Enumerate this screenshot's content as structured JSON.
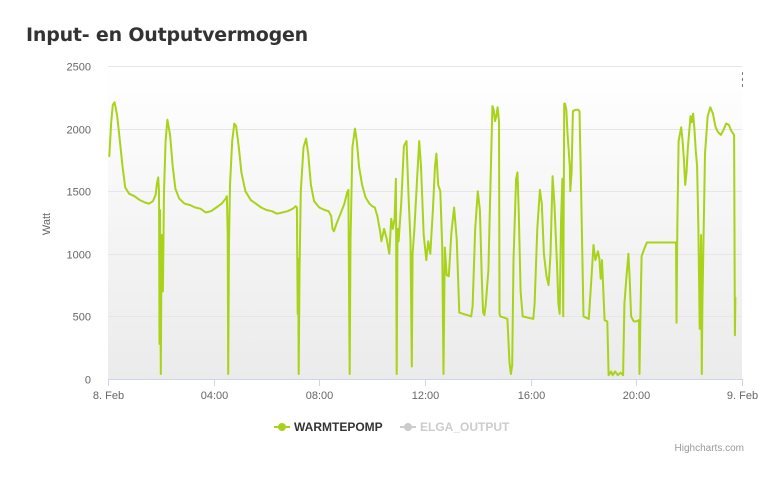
{
  "title": "Input- en Outputvermogen",
  "menu_icon": "hamburger-menu-icon",
  "credits": "Highcharts.com",
  "colors": {
    "warmtepomp": "#a8d31a",
    "elga_inactive": "#cccccc",
    "plot_bg_top": "#ffffff",
    "plot_bg_bottom": "#ebebeb"
  },
  "chart_data": {
    "type": "line",
    "title": "Input- en Outputvermogen",
    "ylabel": "Watt",
    "xlabel": "",
    "ylim": [
      0,
      2500
    ],
    "xlim_hours": [
      0,
      24
    ],
    "y_ticks": [
      "0",
      "500",
      "1000",
      "1500",
      "2000",
      "2500"
    ],
    "x_ticks": [
      {
        "h": 0,
        "label": "8. Feb"
      },
      {
        "h": 4,
        "label": "04:00"
      },
      {
        "h": 8,
        "label": "08:00"
      },
      {
        "h": 12,
        "label": "12:00"
      },
      {
        "h": 16,
        "label": "16:00"
      },
      {
        "h": 20,
        "label": "20:00"
      },
      {
        "h": 24,
        "label": "9. Feb"
      }
    ],
    "grid": true,
    "legend_position": "bottom-center",
    "series": [
      {
        "name": "WARMTEPOMP",
        "visible": true,
        "color": "#a8d31a",
        "points": [
          [
            0.05,
            1780
          ],
          [
            0.12,
            2050
          ],
          [
            0.18,
            2190
          ],
          [
            0.25,
            2210
          ],
          [
            0.35,
            2100
          ],
          [
            0.45,
            1900
          ],
          [
            0.55,
            1700
          ],
          [
            0.65,
            1530
          ],
          [
            0.8,
            1480
          ],
          [
            1.0,
            1460
          ],
          [
            1.2,
            1430
          ],
          [
            1.4,
            1410
          ],
          [
            1.55,
            1400
          ],
          [
            1.7,
            1420
          ],
          [
            1.8,
            1470
          ],
          [
            1.85,
            1560
          ],
          [
            1.9,
            1610
          ],
          [
            1.93,
            1500
          ],
          [
            1.95,
            280
          ],
          [
            1.97,
            1350
          ],
          [
            2.0,
            40
          ],
          [
            2.03,
            1150
          ],
          [
            2.08,
            700
          ],
          [
            2.12,
            1500
          ],
          [
            2.18,
            1900
          ],
          [
            2.25,
            2070
          ],
          [
            2.35,
            1950
          ],
          [
            2.45,
            1700
          ],
          [
            2.55,
            1520
          ],
          [
            2.7,
            1440
          ],
          [
            2.9,
            1400
          ],
          [
            3.1,
            1390
          ],
          [
            3.3,
            1370
          ],
          [
            3.5,
            1360
          ],
          [
            3.7,
            1330
          ],
          [
            3.9,
            1340
          ],
          [
            4.1,
            1370
          ],
          [
            4.3,
            1400
          ],
          [
            4.45,
            1440
          ],
          [
            4.5,
            1460
          ],
          [
            4.53,
            1150
          ],
          [
            4.55,
            40
          ],
          [
            4.58,
            1100
          ],
          [
            4.62,
            1550
          ],
          [
            4.7,
            1900
          ],
          [
            4.78,
            2040
          ],
          [
            4.85,
            2020
          ],
          [
            4.95,
            1850
          ],
          [
            5.05,
            1650
          ],
          [
            5.2,
            1500
          ],
          [
            5.4,
            1430
          ],
          [
            5.6,
            1400
          ],
          [
            5.8,
            1370
          ],
          [
            6.0,
            1350
          ],
          [
            6.2,
            1340
          ],
          [
            6.4,
            1320
          ],
          [
            6.6,
            1330
          ],
          [
            6.8,
            1340
          ],
          [
            7.0,
            1360
          ],
          [
            7.1,
            1380
          ],
          [
            7.15,
            1370
          ],
          [
            7.18,
            520
          ],
          [
            7.2,
            960
          ],
          [
            7.22,
            40
          ],
          [
            7.25,
            850
          ],
          [
            7.3,
            1500
          ],
          [
            7.4,
            1850
          ],
          [
            7.5,
            1920
          ],
          [
            7.58,
            1800
          ],
          [
            7.68,
            1550
          ],
          [
            7.8,
            1420
          ],
          [
            8.0,
            1370
          ],
          [
            8.2,
            1350
          ],
          [
            8.35,
            1340
          ],
          [
            8.45,
            1300
          ],
          [
            8.5,
            1200
          ],
          [
            8.55,
            1180
          ],
          [
            8.65,
            1240
          ],
          [
            8.8,
            1320
          ],
          [
            8.95,
            1400
          ],
          [
            9.05,
            1490
          ],
          [
            9.1,
            1510
          ],
          [
            9.13,
            520
          ],
          [
            9.15,
            40
          ],
          [
            9.18,
            1100
          ],
          [
            9.25,
            1850
          ],
          [
            9.35,
            2000
          ],
          [
            9.42,
            1900
          ],
          [
            9.5,
            1700
          ],
          [
            9.62,
            1550
          ],
          [
            9.75,
            1450
          ],
          [
            9.9,
            1400
          ],
          [
            10.0,
            1380
          ],
          [
            10.1,
            1370
          ],
          [
            10.2,
            1300
          ],
          [
            10.3,
            1180
          ],
          [
            10.35,
            1100
          ],
          [
            10.45,
            1200
          ],
          [
            10.55,
            1120
          ],
          [
            10.65,
            1000
          ],
          [
            10.72,
            1280
          ],
          [
            10.78,
            1200
          ],
          [
            10.85,
            1280
          ],
          [
            10.9,
            1600
          ],
          [
            10.93,
            40
          ],
          [
            10.96,
            1200
          ],
          [
            11.0,
            1100
          ],
          [
            11.1,
            1400
          ],
          [
            11.2,
            1860
          ],
          [
            11.3,
            1900
          ],
          [
            11.38,
            1450
          ],
          [
            11.45,
            1100
          ],
          [
            11.5,
            100
          ],
          [
            11.53,
            1000
          ],
          [
            11.6,
            1200
          ],
          [
            11.7,
            1600
          ],
          [
            11.78,
            1900
          ],
          [
            11.85,
            1700
          ],
          [
            11.95,
            1150
          ],
          [
            12.05,
            950
          ],
          [
            12.12,
            1100
          ],
          [
            12.2,
            1000
          ],
          [
            12.3,
            1350
          ],
          [
            12.38,
            1700
          ],
          [
            12.43,
            1800
          ],
          [
            12.5,
            1550
          ],
          [
            12.58,
            1500
          ],
          [
            12.65,
            1060
          ],
          [
            12.7,
            40
          ],
          [
            12.75,
            1050
          ],
          [
            12.82,
            830
          ],
          [
            12.9,
            820
          ],
          [
            13.0,
            1170
          ],
          [
            13.1,
            1370
          ],
          [
            13.2,
            1120
          ],
          [
            13.3,
            530
          ],
          [
            13.45,
            520
          ],
          [
            13.6,
            510
          ],
          [
            13.75,
            500
          ],
          [
            13.8,
            580
          ],
          [
            13.9,
            1200
          ],
          [
            14.0,
            1500
          ],
          [
            14.08,
            1350
          ],
          [
            14.15,
            800
          ],
          [
            14.2,
            530
          ],
          [
            14.25,
            510
          ],
          [
            14.3,
            600
          ],
          [
            14.4,
            870
          ],
          [
            14.48,
            1560
          ],
          [
            14.55,
            2180
          ],
          [
            14.6,
            2150
          ],
          [
            14.65,
            2060
          ],
          [
            14.7,
            2100
          ],
          [
            14.75,
            2170
          ],
          [
            14.8,
            2060
          ],
          [
            14.82,
            520
          ],
          [
            14.85,
            500
          ],
          [
            15.0,
            490
          ],
          [
            15.12,
            480
          ],
          [
            15.2,
            130
          ],
          [
            15.25,
            40
          ],
          [
            15.3,
            110
          ],
          [
            15.35,
            950
          ],
          [
            15.45,
            1600
          ],
          [
            15.5,
            1650
          ],
          [
            15.55,
            1320
          ],
          [
            15.62,
            700
          ],
          [
            15.7,
            500
          ],
          [
            15.9,
            490
          ],
          [
            16.1,
            480
          ],
          [
            16.15,
            600
          ],
          [
            16.25,
            1200
          ],
          [
            16.35,
            1510
          ],
          [
            16.42,
            1400
          ],
          [
            16.5,
            1000
          ],
          [
            16.6,
            820
          ],
          [
            16.68,
            750
          ],
          [
            16.75,
            1000
          ],
          [
            16.83,
            1620
          ],
          [
            16.9,
            1400
          ],
          [
            17.0,
            900
          ],
          [
            17.05,
            600
          ],
          [
            17.1,
            520
          ],
          [
            17.15,
            1250
          ],
          [
            17.2,
            1600
          ],
          [
            17.23,
            500
          ],
          [
            17.27,
            2200
          ],
          [
            17.3,
            2200
          ],
          [
            17.35,
            2150
          ],
          [
            17.4,
            1950
          ],
          [
            17.48,
            1700
          ],
          [
            17.5,
            1500
          ],
          [
            17.55,
            1650
          ],
          [
            17.6,
            2140
          ],
          [
            17.7,
            2150
          ],
          [
            17.8,
            2150
          ],
          [
            17.85,
            2140
          ],
          [
            17.9,
            1600
          ],
          [
            18.0,
            500
          ],
          [
            18.1,
            490
          ],
          [
            18.2,
            480
          ],
          [
            18.3,
            800
          ],
          [
            18.38,
            1070
          ],
          [
            18.45,
            950
          ],
          [
            18.55,
            1020
          ],
          [
            18.6,
            960
          ],
          [
            18.65,
            800
          ],
          [
            18.7,
            950
          ],
          [
            18.8,
            470
          ],
          [
            18.9,
            460
          ],
          [
            18.95,
            30
          ],
          [
            19.05,
            60
          ],
          [
            19.1,
            30
          ],
          [
            19.2,
            60
          ],
          [
            19.3,
            30
          ],
          [
            19.4,
            50
          ],
          [
            19.5,
            30
          ],
          [
            19.55,
            600
          ],
          [
            19.62,
            800
          ],
          [
            19.7,
            1000
          ],
          [
            19.75,
            800
          ],
          [
            19.8,
            500
          ],
          [
            19.9,
            460
          ],
          [
            20.0,
            460
          ],
          [
            20.1,
            470
          ],
          [
            20.12,
            40
          ],
          [
            20.15,
            450
          ],
          [
            20.2,
            980
          ],
          [
            20.3,
            1040
          ],
          [
            20.4,
            1090
          ],
          [
            20.6,
            1090
          ],
          [
            20.8,
            1090
          ],
          [
            21.0,
            1090
          ],
          [
            21.2,
            1090
          ],
          [
            21.4,
            1090
          ],
          [
            21.5,
            1090
          ],
          [
            21.52,
            450
          ],
          [
            21.55,
            1200
          ],
          [
            21.6,
            1900
          ],
          [
            21.7,
            2010
          ],
          [
            21.75,
            1900
          ],
          [
            21.8,
            1750
          ],
          [
            21.85,
            1550
          ],
          [
            21.9,
            1650
          ],
          [
            21.95,
            1840
          ],
          [
            22.05,
            2100
          ],
          [
            22.1,
            2050
          ],
          [
            22.15,
            2120
          ],
          [
            22.2,
            2000
          ],
          [
            22.25,
            1820
          ],
          [
            22.3,
            1700
          ],
          [
            22.35,
            1200
          ],
          [
            22.4,
            400
          ],
          [
            22.45,
            1150
          ],
          [
            22.48,
            40
          ],
          [
            22.5,
            600
          ],
          [
            22.6,
            1800
          ],
          [
            22.7,
            2100
          ],
          [
            22.8,
            2170
          ],
          [
            22.9,
            2120
          ],
          [
            23.0,
            2010
          ],
          [
            23.1,
            1970
          ],
          [
            23.2,
            1950
          ],
          [
            23.3,
            1990
          ],
          [
            23.4,
            2040
          ],
          [
            23.5,
            2030
          ],
          [
            23.6,
            1980
          ],
          [
            23.7,
            1950
          ],
          [
            23.73,
            350
          ],
          [
            23.75,
            650
          ]
        ]
      },
      {
        "name": "ELGA_OUTPUT",
        "visible": false,
        "color": "#cccccc",
        "points": []
      }
    ]
  }
}
